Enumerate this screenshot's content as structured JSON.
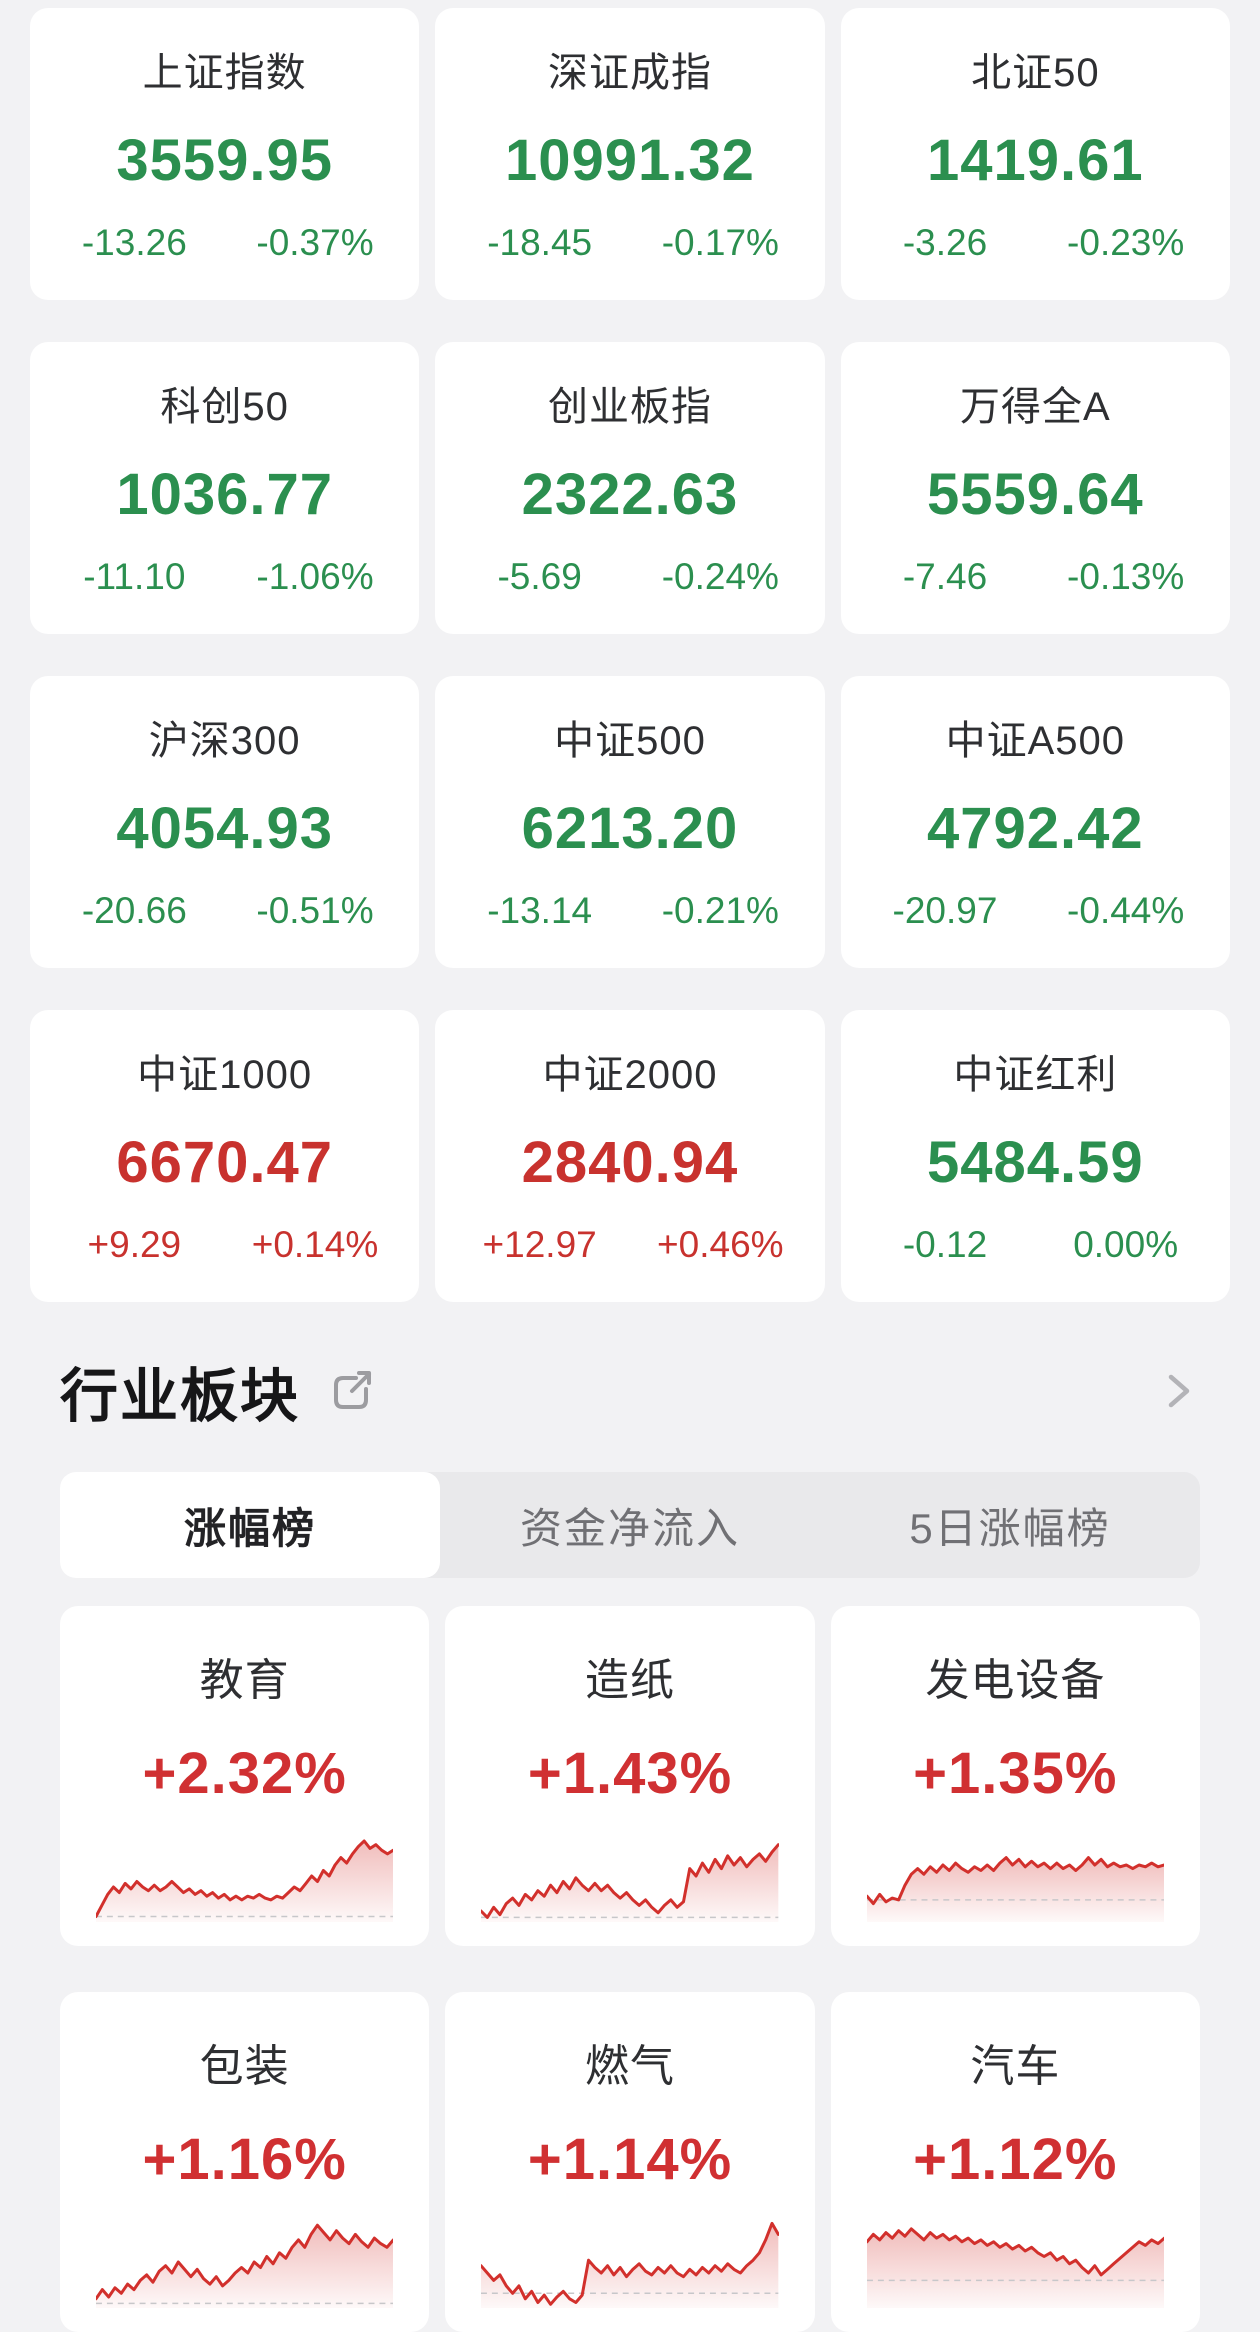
{
  "colors": {
    "up": "#c8322e",
    "down": "#2b8f4f",
    "sector_pct": "#d03032",
    "spark_line": "#d2302c",
    "spark_baseline": "#c7c7ca",
    "page_bg": "#f2f2f4",
    "card_bg": "#ffffff",
    "tab_bg": "#e9e9eb"
  },
  "icons": {
    "share": "share-icon",
    "chevron": "chevron-right-icon"
  },
  "index_cards": [
    {
      "name": "上证指数",
      "value": "3559.95",
      "change": "-13.26",
      "change_pct": "-0.37%",
      "trend": "down"
    },
    {
      "name": "深证成指",
      "value": "10991.32",
      "change": "-18.45",
      "change_pct": "-0.17%",
      "trend": "down"
    },
    {
      "name": "北证50",
      "value": "1419.61",
      "change": "-3.26",
      "change_pct": "-0.23%",
      "trend": "down"
    },
    {
      "name": "科创50",
      "value": "1036.77",
      "change": "-11.10",
      "change_pct": "-1.06%",
      "trend": "down"
    },
    {
      "name": "创业板指",
      "value": "2322.63",
      "change": "-5.69",
      "change_pct": "-0.24%",
      "trend": "down"
    },
    {
      "name": "万得全A",
      "value": "5559.64",
      "change": "-7.46",
      "change_pct": "-0.13%",
      "trend": "down"
    },
    {
      "name": "沪深300",
      "value": "4054.93",
      "change": "-20.66",
      "change_pct": "-0.51%",
      "trend": "down"
    },
    {
      "name": "中证500",
      "value": "6213.20",
      "change": "-13.14",
      "change_pct": "-0.21%",
      "trend": "down"
    },
    {
      "name": "中证A500",
      "value": "4792.42",
      "change": "-20.97",
      "change_pct": "-0.44%",
      "trend": "down"
    },
    {
      "name": "中证1000",
      "value": "6670.47",
      "change": "+9.29",
      "change_pct": "+0.14%",
      "trend": "up"
    },
    {
      "name": "中证2000",
      "value": "2840.94",
      "change": "+12.97",
      "change_pct": "+0.46%",
      "trend": "up"
    },
    {
      "name": "中证红利",
      "value": "5484.59",
      "change": "-0.12",
      "change_pct": "0.00%",
      "trend": "down"
    }
  ],
  "sector_section": {
    "title": "行业板块",
    "tabs": [
      {
        "label": "涨幅榜",
        "active": true
      },
      {
        "label": "资金净流入",
        "active": false
      },
      {
        "label": "5日涨幅榜",
        "active": false
      }
    ],
    "sectors": [
      {
        "name": "教育",
        "change_pct": "+2.32%",
        "baseline": 6,
        "spark": [
          6,
          18,
          30,
          38,
          32,
          42,
          36,
          44,
          38,
          34,
          40,
          34,
          38,
          44,
          38,
          32,
          36,
          30,
          34,
          28,
          32,
          26,
          30,
          24,
          28,
          24,
          28,
          26,
          30,
          26,
          24,
          28,
          26,
          32,
          38,
          34,
          42,
          50,
          44,
          56,
          50,
          62,
          70,
          64,
          74,
          82,
          88,
          80,
          84,
          78,
          74,
          78
        ]
      },
      {
        "name": "造纸",
        "change_pct": "+1.43%",
        "baseline": 5,
        "spark": [
          12,
          5,
          16,
          8,
          20,
          26,
          18,
          30,
          24,
          34,
          28,
          40,
          32,
          44,
          36,
          48,
          40,
          34,
          42,
          34,
          40,
          32,
          26,
          32,
          24,
          18,
          24,
          16,
          10,
          18,
          24,
          16,
          22,
          58,
          50,
          64,
          54,
          68,
          58,
          72,
          62,
          70,
          60,
          68,
          74,
          66,
          76,
          84
        ]
      },
      {
        "name": "发电设备",
        "change_pct": "+1.35%",
        "baseline": 24,
        "spark": [
          28,
          20,
          30,
          22,
          26,
          24,
          40,
          52,
          58,
          52,
          60,
          54,
          62,
          56,
          64,
          58,
          54,
          60,
          56,
          62,
          56,
          64,
          70,
          62,
          68,
          60,
          66,
          60,
          64,
          58,
          64,
          58,
          62,
          56,
          62,
          70,
          62,
          68,
          60,
          64,
          60,
          62,
          58,
          62,
          60,
          64,
          60,
          62
        ]
      },
      {
        "name": "包装",
        "change_pct": "+1.16%",
        "baseline": 5,
        "spark": [
          10,
          20,
          12,
          22,
          16,
          26,
          20,
          30,
          36,
          28,
          40,
          46,
          38,
          50,
          42,
          34,
          42,
          32,
          26,
          34,
          24,
          30,
          38,
          44,
          38,
          50,
          44,
          56,
          48,
          60,
          54,
          66,
          74,
          66,
          80,
          90,
          82,
          74,
          84,
          76,
          70,
          80,
          72,
          66,
          76,
          70,
          66,
          74
        ]
      },
      {
        "name": "燃气",
        "change_pct": "+1.14%",
        "baseline": 16,
        "spark": [
          46,
          38,
          30,
          36,
          24,
          16,
          24,
          10,
          18,
          6,
          14,
          4,
          12,
          18,
          10,
          6,
          14,
          52,
          44,
          38,
          46,
          36,
          44,
          34,
          42,
          48,
          40,
          36,
          44,
          38,
          46,
          38,
          34,
          42,
          36,
          44,
          38,
          46,
          40,
          48,
          42,
          38,
          46,
          52,
          60,
          74,
          92,
          80
        ]
      },
      {
        "name": "汽车",
        "change_pct": "+1.12%",
        "baseline": 30,
        "spark": [
          72,
          80,
          74,
          82,
          76,
          84,
          78,
          86,
          80,
          74,
          82,
          76,
          80,
          74,
          78,
          72,
          76,
          70,
          74,
          68,
          72,
          66,
          70,
          64,
          68,
          62,
          66,
          60,
          56,
          60,
          52,
          56,
          48,
          52,
          44,
          38,
          46,
          36,
          42,
          48,
          54,
          60,
          66,
          72,
          68,
          74,
          70,
          76
        ]
      }
    ]
  }
}
